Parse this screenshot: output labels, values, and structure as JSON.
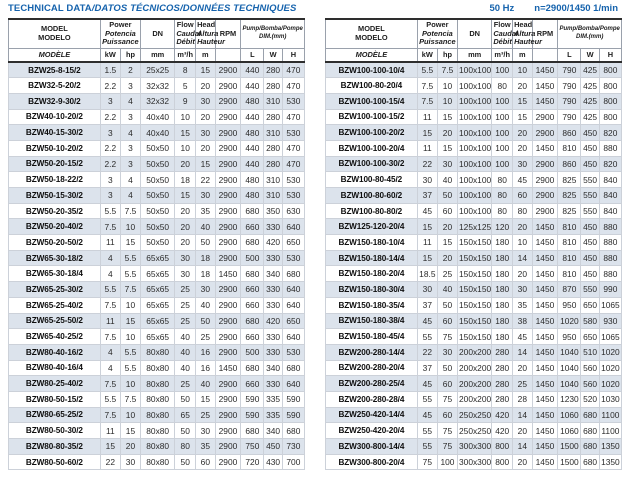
{
  "page": {
    "title_upright": "TECHNICAL DATA",
    "title_italic": "/DATOS TÉCNICOS/DONNÉES TECHNIQUES",
    "frequency": "50 Hz",
    "speed": "n=2900/1450 1/min"
  },
  "colors": {
    "accent_blue": "#1663ad",
    "row_shade": "#dce3ec",
    "header_rule": "#2e2e2e"
  },
  "header": {
    "model": [
      "MODEL",
      "MODELO"
    ],
    "model_row2": "MODÈLE",
    "power": [
      "Power",
      "Potencia",
      "Puissance"
    ],
    "power_units": [
      "kW",
      "hp"
    ],
    "dn": "DN",
    "dn_unit": "mm",
    "flow": [
      "Flow",
      "Caudal",
      "Débit"
    ],
    "flow_unit": "m³/h",
    "head": [
      "Head",
      "Altura",
      "Hauteur"
    ],
    "head_unit": "m",
    "rpm": "RPM",
    "rpm_unit": "",
    "dim": [
      "Pump/Bomba/Pompe",
      "DIM.(mm)"
    ],
    "dim_units": [
      "L",
      "W",
      "H"
    ]
  },
  "tables": [
    {
      "rows": [
        [
          "BZW25-8-15/2",
          "1.5",
          "2",
          "25x25",
          "8",
          "15",
          "2900",
          "440",
          "280",
          "470"
        ],
        [
          "BZW32-5-20/2",
          "2.2",
          "3",
          "32x32",
          "5",
          "20",
          "2900",
          "440",
          "280",
          "470"
        ],
        [
          "BZW32-9-30/2",
          "3",
          "4",
          "32x32",
          "9",
          "30",
          "2900",
          "480",
          "310",
          "530"
        ],
        [
          "BZW40-10-20/2",
          "2.2",
          "3",
          "40x40",
          "10",
          "20",
          "2900",
          "440",
          "280",
          "470"
        ],
        [
          "BZW40-15-30/2",
          "3",
          "4",
          "40x40",
          "15",
          "30",
          "2900",
          "480",
          "310",
          "530"
        ],
        [
          "BZW50-10-20/2",
          "2.2",
          "3",
          "50x50",
          "10",
          "20",
          "2900",
          "440",
          "280",
          "470"
        ],
        [
          "BZW50-20-15/2",
          "2.2",
          "3",
          "50x50",
          "20",
          "15",
          "2900",
          "440",
          "280",
          "470"
        ],
        [
          "BZW50-18-22/2",
          "3",
          "4",
          "50x50",
          "18",
          "22",
          "2900",
          "480",
          "310",
          "530"
        ],
        [
          "BZW50-15-30/2",
          "3",
          "4",
          "50x50",
          "15",
          "30",
          "2900",
          "480",
          "310",
          "530"
        ],
        [
          "BZW50-20-35/2",
          "5.5",
          "7.5",
          "50x50",
          "20",
          "35",
          "2900",
          "680",
          "350",
          "630"
        ],
        [
          "BZW50-20-40/2",
          "7.5",
          "10",
          "50x50",
          "20",
          "40",
          "2900",
          "660",
          "330",
          "640"
        ],
        [
          "BZW50-20-50/2",
          "11",
          "15",
          "50x50",
          "20",
          "50",
          "2900",
          "680",
          "420",
          "650"
        ],
        [
          "BZW65-30-18/2",
          "4",
          "5.5",
          "65x65",
          "30",
          "18",
          "2900",
          "500",
          "330",
          "530"
        ],
        [
          "BZW65-30-18/4",
          "4",
          "5.5",
          "65x65",
          "30",
          "18",
          "1450",
          "680",
          "340",
          "680"
        ],
        [
          "BZW65-25-30/2",
          "5.5",
          "7.5",
          "65x65",
          "25",
          "30",
          "2900",
          "660",
          "330",
          "640"
        ],
        [
          "BZW65-25-40/2",
          "7.5",
          "10",
          "65x65",
          "25",
          "40",
          "2900",
          "660",
          "330",
          "640"
        ],
        [
          "BZW65-25-50/2",
          "11",
          "15",
          "65x65",
          "25",
          "50",
          "2900",
          "680",
          "420",
          "650"
        ],
        [
          "BZW65-40-25/2",
          "7.5",
          "10",
          "65x65",
          "40",
          "25",
          "2900",
          "660",
          "330",
          "640"
        ],
        [
          "BZW80-40-16/2",
          "4",
          "5.5",
          "80x80",
          "40",
          "16",
          "2900",
          "500",
          "330",
          "530"
        ],
        [
          "BZW80-40-16/4",
          "4",
          "5.5",
          "80x80",
          "40",
          "16",
          "1450",
          "680",
          "340",
          "680"
        ],
        [
          "BZW80-25-40/2",
          "7.5",
          "10",
          "80x80",
          "25",
          "40",
          "2900",
          "660",
          "330",
          "640"
        ],
        [
          "BZW80-50-15/2",
          "5.5",
          "7.5",
          "80x80",
          "50",
          "15",
          "2900",
          "590",
          "335",
          "590"
        ],
        [
          "BZW80-65-25/2",
          "7.5",
          "10",
          "80x80",
          "65",
          "25",
          "2900",
          "590",
          "335",
          "590"
        ],
        [
          "BZW80-50-30/2",
          "11",
          "15",
          "80x80",
          "50",
          "30",
          "2900",
          "680",
          "340",
          "680"
        ],
        [
          "BZW80-80-35/2",
          "15",
          "20",
          "80x80",
          "80",
          "35",
          "2900",
          "750",
          "450",
          "730"
        ],
        [
          "BZW80-50-60/2",
          "22",
          "30",
          "80x80",
          "50",
          "60",
          "2900",
          "720",
          "430",
          "700"
        ]
      ]
    },
    {
      "rows": [
        [
          "BZW100-100-10/4",
          "5.5",
          "7.5",
          "100x100",
          "100",
          "10",
          "1450",
          "790",
          "425",
          "800"
        ],
        [
          "BZW100-80-20/4",
          "7.5",
          "10",
          "100x100",
          "80",
          "20",
          "1450",
          "790",
          "425",
          "800"
        ],
        [
          "BZW100-100-15/4",
          "7.5",
          "10",
          "100x100",
          "100",
          "15",
          "1450",
          "790",
          "425",
          "800"
        ],
        [
          "BZW100-100-15/2",
          "11",
          "15",
          "100x100",
          "100",
          "15",
          "2900",
          "790",
          "425",
          "800"
        ],
        [
          "BZW100-100-20/2",
          "15",
          "20",
          "100x100",
          "100",
          "20",
          "2900",
          "860",
          "450",
          "820"
        ],
        [
          "BZW100-100-20/4",
          "11",
          "15",
          "100x100",
          "100",
          "20",
          "1450",
          "810",
          "450",
          "880"
        ],
        [
          "BZW100-100-30/2",
          "22",
          "30",
          "100x100",
          "100",
          "30",
          "2900",
          "860",
          "450",
          "820"
        ],
        [
          "BZW100-80-45/2",
          "30",
          "40",
          "100x100",
          "80",
          "45",
          "2900",
          "825",
          "550",
          "840"
        ],
        [
          "BZW100-80-60/2",
          "37",
          "50",
          "100x100",
          "80",
          "60",
          "2900",
          "825",
          "550",
          "840"
        ],
        [
          "BZW100-80-80/2",
          "45",
          "60",
          "100x100",
          "80",
          "80",
          "2900",
          "825",
          "550",
          "840"
        ],
        [
          "BZW125-120-20/4",
          "15",
          "20",
          "125x125",
          "120",
          "20",
          "1450",
          "810",
          "450",
          "880"
        ],
        [
          "BZW150-180-10/4",
          "11",
          "15",
          "150x150",
          "180",
          "10",
          "1450",
          "810",
          "450",
          "880"
        ],
        [
          "BZW150-180-14/4",
          "15",
          "20",
          "150x150",
          "180",
          "14",
          "1450",
          "810",
          "450",
          "880"
        ],
        [
          "BZW150-180-20/4",
          "18.5",
          "25",
          "150x150",
          "180",
          "20",
          "1450",
          "810",
          "450",
          "880"
        ],
        [
          "BZW150-180-30/4",
          "30",
          "40",
          "150x150",
          "180",
          "30",
          "1450",
          "870",
          "550",
          "990"
        ],
        [
          "BZW150-180-35/4",
          "37",
          "50",
          "150x150",
          "180",
          "35",
          "1450",
          "950",
          "650",
          "1065"
        ],
        [
          "BZW150-180-38/4",
          "45",
          "60",
          "150x150",
          "180",
          "38",
          "1450",
          "1020",
          "580",
          "930"
        ],
        [
          "BZW150-180-45/4",
          "55",
          "75",
          "150x150",
          "180",
          "45",
          "1450",
          "950",
          "650",
          "1065"
        ],
        [
          "BZW200-280-14/4",
          "22",
          "30",
          "200x200",
          "280",
          "14",
          "1450",
          "1040",
          "510",
          "1020"
        ],
        [
          "BZW200-280-20/4",
          "37",
          "50",
          "200x200",
          "280",
          "20",
          "1450",
          "1040",
          "560",
          "1020"
        ],
        [
          "BZW200-280-25/4",
          "45",
          "60",
          "200x200",
          "280",
          "25",
          "1450",
          "1040",
          "560",
          "1020"
        ],
        [
          "BZW200-280-28/4",
          "55",
          "75",
          "200x200",
          "280",
          "28",
          "1450",
          "1230",
          "520",
          "1030"
        ],
        [
          "BZW250-420-14/4",
          "45",
          "60",
          "250x250",
          "420",
          "14",
          "1450",
          "1060",
          "680",
          "1100"
        ],
        [
          "BZW250-420-20/4",
          "55",
          "75",
          "250x250",
          "420",
          "20",
          "1450",
          "1060",
          "680",
          "1100"
        ],
        [
          "BZW300-800-14/4",
          "55",
          "75",
          "300x300",
          "800",
          "14",
          "1450",
          "1500",
          "680",
          "1350"
        ],
        [
          "BZW300-800-20/4",
          "75",
          "100",
          "300x300",
          "800",
          "20",
          "1450",
          "1500",
          "680",
          "1350"
        ]
      ]
    }
  ]
}
